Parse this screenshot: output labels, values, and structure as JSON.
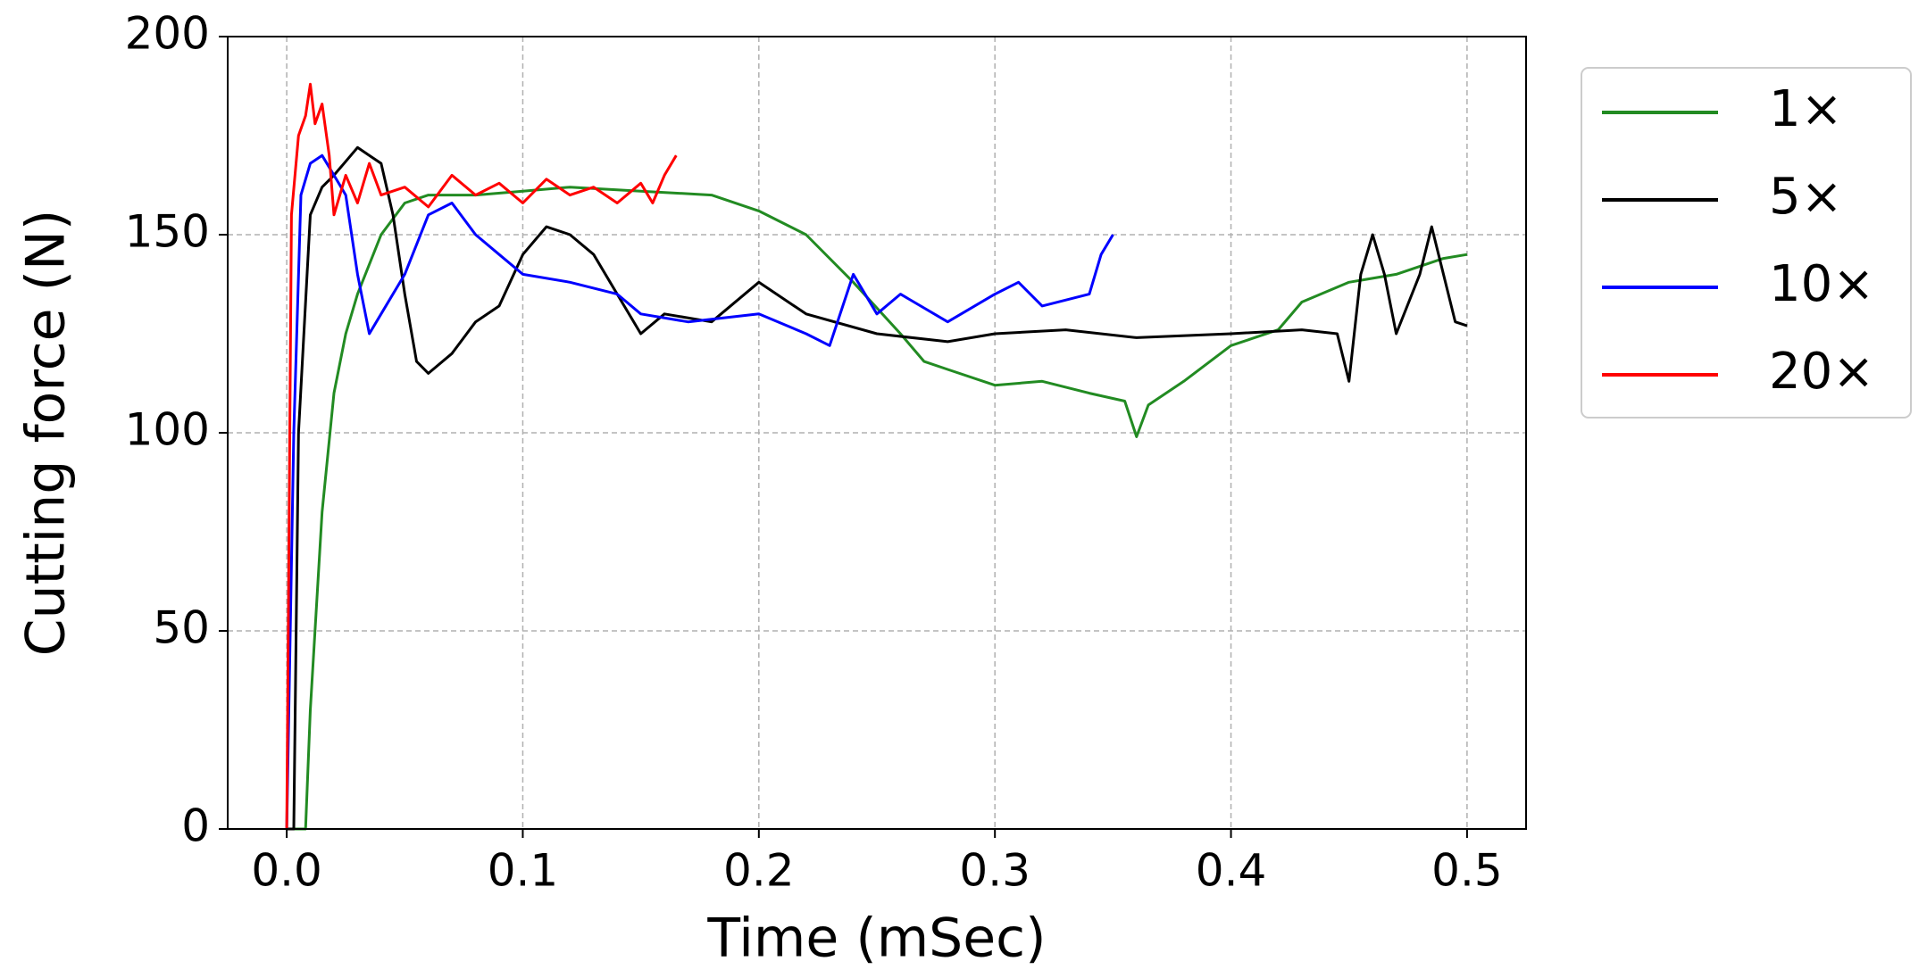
{
  "chart_data": {
    "type": "line",
    "xlabel": "Time (mSec)",
    "ylabel": "Cutting force (N)",
    "xlim": [
      -0.025,
      0.525
    ],
    "ylim": [
      0,
      200
    ],
    "xticks": [
      {
        "value": 0,
        "label": "0.0"
      },
      0.1,
      0.2,
      0.3,
      0.4,
      0.5
    ],
    "yticks": [
      0,
      50,
      100,
      150,
      200
    ],
    "grid": true,
    "legend": "outside-right",
    "series": [
      {
        "name": "1×",
        "color": "#228b22",
        "x": [
          0,
          0.008,
          0.01,
          0.015,
          0.02,
          0.025,
          0.03,
          0.04,
          0.05,
          0.06,
          0.08,
          0.1,
          0.12,
          0.15,
          0.18,
          0.2,
          0.22,
          0.24,
          0.26,
          0.27,
          0.28,
          0.3,
          0.32,
          0.34,
          0.355,
          0.36,
          0.365,
          0.38,
          0.4,
          0.42,
          0.43,
          0.45,
          0.47,
          0.49,
          0.5
        ],
        "values": [
          0,
          0,
          30,
          80,
          110,
          125,
          135,
          150,
          158,
          160,
          160,
          161,
          162,
          161,
          160,
          156,
          150,
          138,
          125,
          118,
          116,
          112,
          113,
          110,
          108,
          99,
          107,
          113,
          122,
          126,
          133,
          138,
          140,
          144,
          145
        ]
      },
      {
        "name": "5×",
        "color": "#000000",
        "x": [
          0,
          0.003,
          0.005,
          0.01,
          0.015,
          0.02,
          0.03,
          0.035,
          0.04,
          0.045,
          0.05,
          0.055,
          0.06,
          0.07,
          0.08,
          0.09,
          0.1,
          0.11,
          0.12,
          0.13,
          0.14,
          0.15,
          0.16,
          0.18,
          0.2,
          0.22,
          0.25,
          0.28,
          0.3,
          0.33,
          0.36,
          0.4,
          0.43,
          0.445,
          0.45,
          0.455,
          0.46,
          0.465,
          0.47,
          0.48,
          0.485,
          0.49,
          0.495,
          0.5
        ],
        "values": [
          0,
          0,
          100,
          155,
          162,
          165,
          172,
          170,
          168,
          155,
          135,
          118,
          115,
          120,
          128,
          132,
          145,
          152,
          150,
          145,
          135,
          125,
          130,
          128,
          138,
          130,
          125,
          123,
          125,
          126,
          124,
          125,
          126,
          125,
          113,
          140,
          150,
          140,
          125,
          140,
          152,
          140,
          128,
          127
        ]
      },
      {
        "name": "10×",
        "color": "#0000ff",
        "x": [
          0,
          0.003,
          0.006,
          0.01,
          0.015,
          0.02,
          0.025,
          0.03,
          0.035,
          0.04,
          0.05,
          0.06,
          0.07,
          0.08,
          0.09,
          0.1,
          0.12,
          0.14,
          0.15,
          0.17,
          0.2,
          0.22,
          0.23,
          0.24,
          0.25,
          0.26,
          0.28,
          0.3,
          0.31,
          0.32,
          0.34,
          0.345,
          0.35
        ],
        "values": [
          0,
          100,
          160,
          168,
          170,
          165,
          160,
          140,
          125,
          130,
          140,
          155,
          158,
          150,
          145,
          140,
          138,
          135,
          130,
          128,
          130,
          125,
          122,
          140,
          130,
          135,
          128,
          135,
          138,
          132,
          135,
          145,
          150
        ]
      },
      {
        "name": "20×",
        "color": "#ff0000",
        "x": [
          0,
          0.002,
          0.005,
          0.008,
          0.01,
          0.012,
          0.015,
          0.018,
          0.02,
          0.025,
          0.03,
          0.035,
          0.04,
          0.05,
          0.06,
          0.07,
          0.08,
          0.09,
          0.1,
          0.11,
          0.12,
          0.13,
          0.14,
          0.15,
          0.155,
          0.16,
          0.165
        ],
        "values": [
          0,
          155,
          175,
          180,
          188,
          178,
          183,
          170,
          155,
          165,
          158,
          168,
          160,
          162,
          157,
          165,
          160,
          163,
          158,
          164,
          160,
          162,
          158,
          163,
          158,
          165,
          170
        ]
      }
    ]
  }
}
